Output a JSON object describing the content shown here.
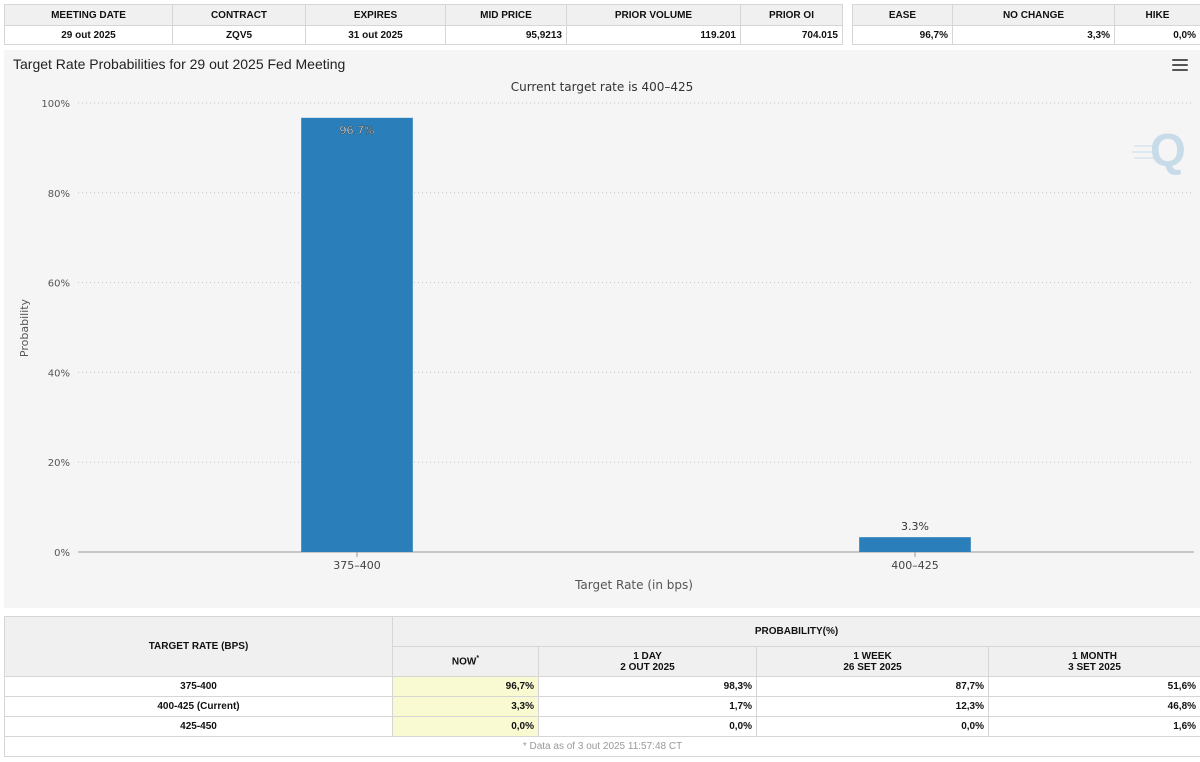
{
  "meeting_table": {
    "headers": [
      "MEETING DATE",
      "CONTRACT",
      "EXPIRES",
      "MID PRICE",
      "PRIOR VOLUME",
      "PRIOR OI"
    ],
    "row": [
      "29 out 2025",
      "ZQV5",
      "31 out 2025",
      "95,9213",
      "119.201",
      "704.015"
    ]
  },
  "outcome_table": {
    "headers": [
      "EASE",
      "NO CHANGE",
      "HIKE"
    ],
    "row": [
      "96,7%",
      "3,3%",
      "0,0%"
    ]
  },
  "chart_data": {
    "type": "bar",
    "title": "Target Rate Probabilities for 29 out 2025 Fed Meeting",
    "subtitle": "Current target rate is 400–425",
    "xlabel": "Target Rate (in bps)",
    "ylabel": "Probability",
    "categories": [
      "375–400",
      "400–425"
    ],
    "values": [
      96.7,
      3.3
    ],
    "data_labels": [
      "96.7%",
      "3.3%"
    ],
    "ylim": [
      0,
      100
    ],
    "yticks": [
      0,
      20,
      40,
      60,
      80,
      100
    ],
    "ytick_labels": [
      "0%",
      "20%",
      "40%",
      "60%",
      "80%",
      "100%"
    ],
    "grid": true,
    "legend": "none",
    "bar_color": "#2a7fba"
  },
  "probability_table": {
    "rate_header": "TARGET RATE (BPS)",
    "group_header": "PROBABILITY(%)",
    "columns": [
      {
        "line1": "NOW",
        "line2": "",
        "marker": "*"
      },
      {
        "line1": "1 DAY",
        "line2": "2 OUT 2025",
        "marker": ""
      },
      {
        "line1": "1 WEEK",
        "line2": "26 SET 2025",
        "marker": ""
      },
      {
        "line1": "1 MONTH",
        "line2": "3 SET 2025",
        "marker": ""
      }
    ],
    "rows": [
      {
        "rate": "375-400",
        "values": [
          "96,7%",
          "98,3%",
          "87,7%",
          "51,6%"
        ]
      },
      {
        "rate": "400-425 (Current)",
        "values": [
          "3,3%",
          "1,7%",
          "12,3%",
          "46,8%"
        ]
      },
      {
        "rate": "425-450",
        "values": [
          "0,0%",
          "0,0%",
          "0,0%",
          "1,6%"
        ]
      }
    ],
    "footnote": "* Data as of 3 out 2025 11:57:48 CT"
  },
  "icons": {
    "menu": "hamburger-menu-icon",
    "watermark": "quikstrike-q-logo"
  },
  "colors": {
    "now_highlight": "#fafad2",
    "header_bg": "#f0f0f0",
    "chart_bg": "#f5f5f5"
  }
}
